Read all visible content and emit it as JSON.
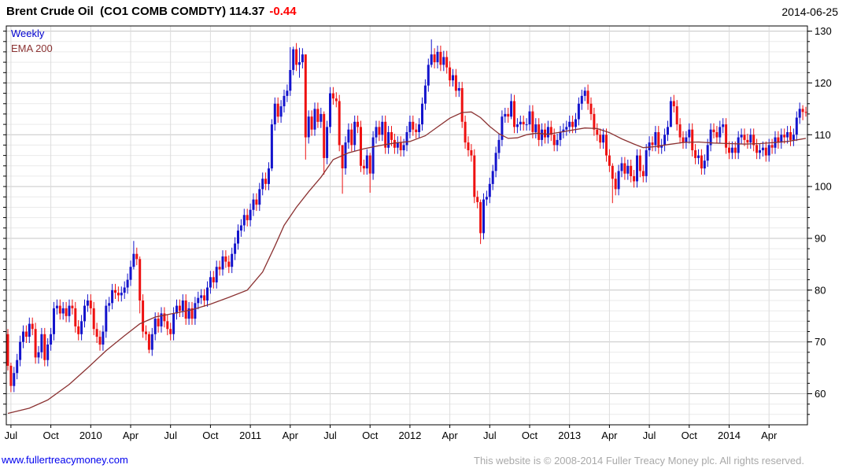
{
  "header": {
    "instrument": "Brent Crude Oil  (CO1 COMB COMDTY)",
    "last_price": "114.37",
    "change": "-0.44",
    "date": "2014-06-25"
  },
  "legend": {
    "series1": "Weekly",
    "series2": "EMA 200"
  },
  "footer": {
    "link": "www.fullertreacymoney.com",
    "copyright": "This website is © 2008-2014 Fuller Treacy Money plc. All rights reserved."
  },
  "colors": {
    "up_candle": "#1414cc",
    "down_candle": "#ee1111",
    "ema_line": "#8b3232",
    "change_text": "#ff0000",
    "grid_major": "#c6c6c6",
    "grid_minor": "#eaeaea",
    "grid_vertical": "#dcdcdc",
    "border": "#000000",
    "axis_text": "#000000"
  },
  "chart_data": {
    "type": "candlestick",
    "title": "Brent Crude Oil (CO1 COMB COMDTY)",
    "timeframe": "Weekly",
    "overlay": "EMA 200",
    "period_shown": "Jul 2009 - Jun 2014",
    "last_price": 114.37,
    "change": -0.44,
    "ylim": [
      54,
      131
    ],
    "yticks": [
      60,
      70,
      80,
      90,
      100,
      110,
      120,
      130
    ],
    "minor_y_step": 2,
    "grid": true,
    "legend_position": "top-left-inside",
    "x_tick_labels": [
      "Jul",
      "Oct",
      "2010",
      "Apr",
      "Jul",
      "Oct",
      "2011",
      "Apr",
      "Jul",
      "Oct",
      "2012",
      "Apr",
      "Jul",
      "Oct",
      "2013",
      "Apr",
      "Jul",
      "Oct",
      "2014",
      "Apr"
    ],
    "x_tick_weeks": [
      1,
      14,
      27,
      40,
      53,
      66,
      79,
      92,
      105,
      118,
      131,
      144,
      157,
      170,
      183,
      196,
      209,
      222,
      235,
      248
    ],
    "open_rule": "previous_close",
    "first_open": 71.5,
    "default_wick": 1.2,
    "closes": [
      65.4,
      61.5,
      64,
      66.5,
      70,
      72,
      71,
      73.5,
      72.5,
      67,
      68,
      71.5,
      66.5,
      69.5,
      71.5,
      76.5,
      77,
      75.5,
      76.5,
      75,
      77,
      76.5,
      73,
      71.5,
      74,
      77,
      78,
      76.5,
      72.5,
      71,
      69.5,
      72,
      77,
      77.5,
      80,
      79.5,
      79,
      79.5,
      80.5,
      82,
      84.5,
      87,
      86,
      78,
      72,
      71.5,
      68.5,
      71.5,
      74.5,
      73,
      75.5,
      74,
      72.5,
      71.5,
      75.5,
      77,
      76,
      78,
      74.5,
      76.5,
      74.5,
      77.5,
      78.5,
      79,
      78,
      80.5,
      82.5,
      81.5,
      84.5,
      84,
      86.5,
      85.5,
      84.5,
      87,
      89,
      91.5,
      92.5,
      94.5,
      93.5,
      95.5,
      97.5,
      96.5,
      99.5,
      101.5,
      100.5,
      103.5,
      112,
      116,
      113.5,
      115.5,
      117.5,
      118.5,
      122.5,
      126.5,
      123.5,
      124,
      125.5,
      109.5,
      113.5,
      111,
      115,
      112.5,
      114,
      105.5,
      111.5,
      118,
      117,
      116.5,
      108,
      103.5,
      108.5,
      111,
      108,
      112.5,
      111.5,
      104,
      103.5,
      106,
      102.5,
      109.5,
      111.5,
      110,
      112.5,
      107.5,
      110.5,
      109,
      107.5,
      108.5,
      107,
      108,
      110.5,
      112.5,
      111,
      110.5,
      112,
      116,
      119.5,
      123.5,
      125.5,
      124,
      126,
      123.5,
      125,
      123,
      120.5,
      121.5,
      118.5,
      119,
      112.5,
      108.5,
      107,
      106,
      98,
      97,
      91,
      97.5,
      98,
      100.5,
      103,
      106.5,
      109,
      113.5,
      114,
      113.5,
      116.5,
      111.5,
      112,
      112.5,
      112,
      112,
      114.5,
      110.5,
      112,
      109,
      111,
      109.5,
      111.5,
      110,
      108,
      109,
      110.5,
      111,
      111.5,
      112.5,
      111.5,
      113,
      116,
      117.5,
      118.5,
      116,
      114,
      111,
      110,
      108.5,
      110,
      106,
      104,
      101.5,
      99.5,
      103,
      104.5,
      102.5,
      104,
      102,
      101,
      106,
      103,
      102,
      107,
      108.5,
      108,
      110.5,
      107.5,
      108,
      110,
      111.5,
      116.5,
      115.5,
      112,
      109.5,
      108.5,
      109.5,
      111,
      107,
      105.5,
      106,
      103.5,
      105,
      108,
      111,
      110.5,
      109.5,
      111.5,
      112,
      107.5,
      106.5,
      107.5,
      106.5,
      109.5,
      110,
      109,
      108.5,
      110,
      108,
      106.5,
      107,
      107.5,
      106,
      108,
      107.5,
      109.5,
      108.5,
      110,
      109.5,
      110.5,
      109,
      110,
      113.3,
      115,
      114.4,
      114.37
    ],
    "wick_overrides": {
      "0": [
        72.5,
        64.5
      ],
      "1": [
        66.0,
        60.3
      ],
      "41": [
        89.5,
        84.0
      ],
      "43": [
        86.5,
        75.5
      ],
      "46": [
        72.0,
        67.8
      ],
      "86": [
        113.0,
        103.0
      ],
      "92": [
        126.9,
        117.5
      ],
      "93": [
        127.0,
        121.5
      ],
      "95": [
        126.8,
        121.0
      ],
      "97": [
        125.5,
        105.2
      ],
      "103": [
        114.5,
        102.3
      ],
      "109": [
        106.0,
        98.6
      ],
      "118": [
        106.5,
        98.8
      ],
      "138": [
        128.4,
        123.0
      ],
      "154": [
        97.5,
        88.9
      ],
      "164": [
        117.9,
        113.0
      ],
      "188": [
        119.2,
        116.5
      ],
      "197": [
        104.5,
        96.8
      ],
      "216": [
        117.3,
        111.5
      ],
      "259": [
        115.7,
        112.8
      ],
      "260": [
        115.4,
        113.5
      ]
    },
    "ema200_points": [
      [
        0,
        56.2
      ],
      [
        7,
        57.2
      ],
      [
        13,
        58.8
      ],
      [
        20,
        61.8
      ],
      [
        26,
        65
      ],
      [
        32,
        68.3
      ],
      [
        38,
        71.2
      ],
      [
        43,
        73.5
      ],
      [
        48,
        74.8
      ],
      [
        54,
        75.5
      ],
      [
        60,
        76.2
      ],
      [
        66,
        77.3
      ],
      [
        72,
        78.6
      ],
      [
        78,
        80
      ],
      [
        83,
        83.5
      ],
      [
        87,
        88.5
      ],
      [
        90,
        92.5
      ],
      [
        94,
        96
      ],
      [
        98,
        99
      ],
      [
        102,
        101.8
      ],
      [
        106,
        105.2
      ],
      [
        111,
        106.5
      ],
      [
        116,
        107.3
      ],
      [
        121,
        107.9
      ],
      [
        126,
        108.4
      ],
      [
        131,
        108.7
      ],
      [
        136,
        109.8
      ],
      [
        140,
        111.5
      ],
      [
        144,
        113.2
      ],
      [
        148,
        114.3
      ],
      [
        151,
        114.4
      ],
      [
        154,
        113.3
      ],
      [
        157,
        111.6
      ],
      [
        160,
        110.2
      ],
      [
        163,
        109.3
      ],
      [
        166,
        109.4
      ],
      [
        169,
        110
      ],
      [
        172,
        110.3
      ],
      [
        176,
        110.1
      ],
      [
        180,
        110.5
      ],
      [
        184,
        110.9
      ],
      [
        188,
        111.3
      ],
      [
        192,
        111.2
      ],
      [
        196,
        110.4
      ],
      [
        200,
        109.2
      ],
      [
        204,
        108.2
      ],
      [
        207,
        107.5
      ],
      [
        211,
        107.7
      ],
      [
        215,
        108.1
      ],
      [
        220,
        108.5
      ],
      [
        225,
        108.6
      ],
      [
        230,
        108.4
      ],
      [
        235,
        108.3
      ],
      [
        240,
        108.2
      ],
      [
        245,
        108.3
      ],
      [
        250,
        108.5
      ],
      [
        254,
        108.7
      ],
      [
        258,
        109.1
      ],
      [
        260,
        109.3
      ]
    ]
  }
}
